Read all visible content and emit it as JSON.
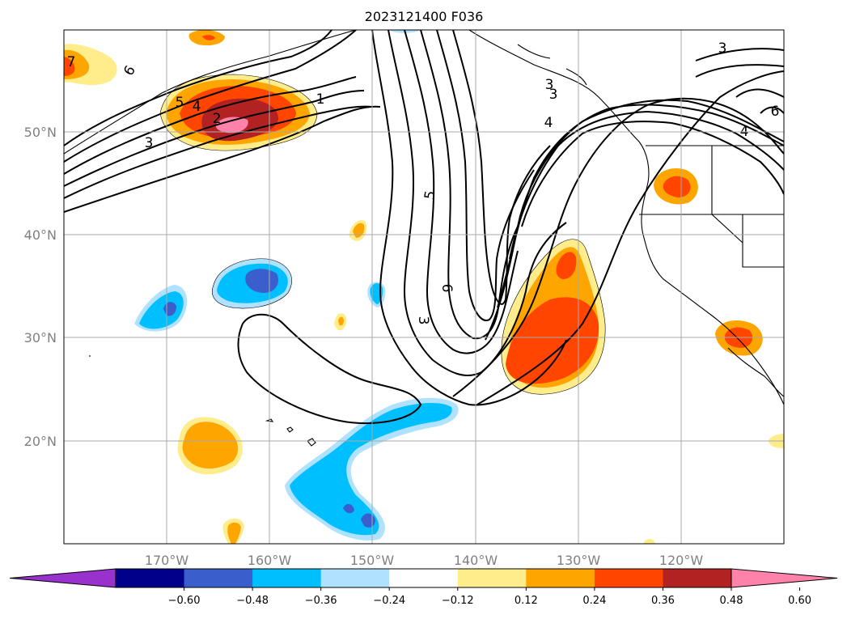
{
  "title": "2023121400 F036",
  "map": {
    "lon_range": [
      -180,
      -110
    ],
    "lat_range": [
      10,
      60
    ],
    "grid": true,
    "lon_ticks": [
      "170°W",
      "160°W",
      "150°W",
      "140°W",
      "130°W",
      "120°W"
    ],
    "lat_ticks": [
      "50°N",
      "40°N",
      "30°N",
      "20°N"
    ],
    "contour_labels": [
      "7",
      "6",
      "5",
      "4",
      "3",
      "2",
      "1",
      "3",
      "3",
      "4",
      "4",
      "5",
      "6",
      "3",
      "3",
      "6"
    ]
  },
  "colorbar": {
    "ticks": [
      "−0.60",
      "−0.48",
      "−0.36",
      "−0.24",
      "−0.12",
      "0.12",
      "0.24",
      "0.36",
      "0.48",
      "0.60"
    ],
    "colors": [
      "#9932cc",
      "#00008b",
      "#3a5fcd",
      "#00bfff",
      "#b0e2ff",
      "#ffffff",
      "#ffec8b",
      "#ffa500",
      "#ff4500",
      "#b22222",
      "#ff82ab"
    ],
    "extend": "both"
  }
}
